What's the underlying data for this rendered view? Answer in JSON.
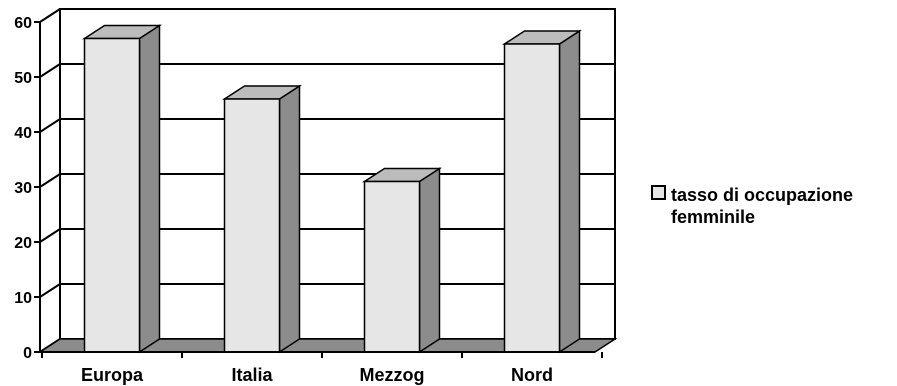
{
  "chart_data": {
    "type": "bar",
    "categories": [
      "Europa",
      "Italia",
      "Mezzog",
      "Nord"
    ],
    "series": [
      {
        "name": "tasso di occupazione femminile",
        "values": [
          57,
          46,
          31,
          56
        ]
      }
    ],
    "yticks": [
      0,
      10,
      20,
      30,
      40,
      50,
      60
    ],
    "ylim": [
      0,
      60
    ],
    "grid": true,
    "legend_position": "right",
    "colors": {
      "bar_front": "#e6e6e6",
      "bar_side": "#8c8c8c",
      "bar_top": "#bcbcbc",
      "floor": "#8c8c8c"
    }
  },
  "legend": {
    "line1": "tasso di occupazione",
    "line2": "femminile"
  }
}
